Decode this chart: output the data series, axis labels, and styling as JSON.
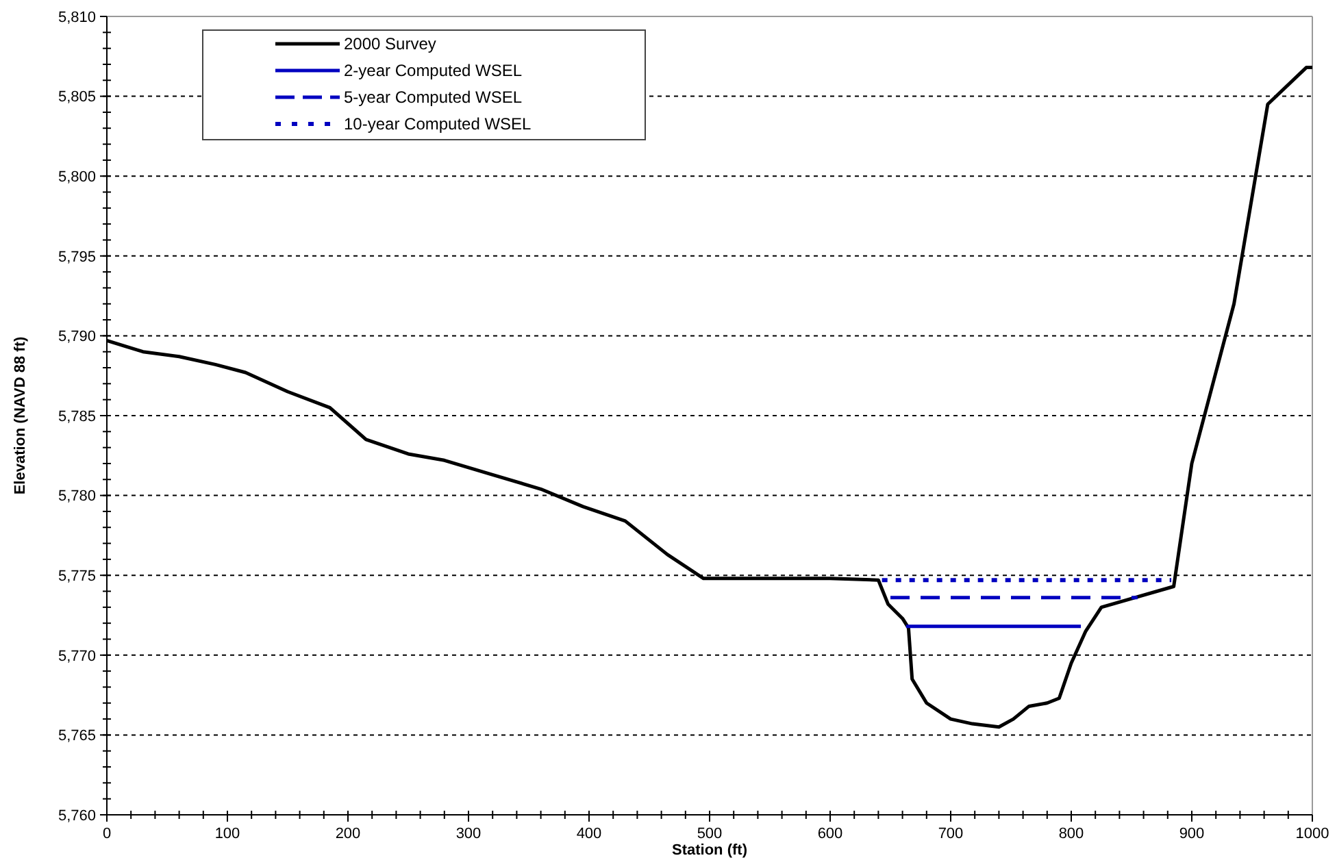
{
  "chart_data": {
    "type": "line",
    "xlabel": "Station (ft)",
    "ylabel": "Elevation (NAVD 88 ft)",
    "xlim": [
      0,
      1000
    ],
    "xticks": [
      0,
      100,
      200,
      300,
      400,
      500,
      600,
      700,
      800,
      900,
      1000
    ],
    "ylim": [
      5760,
      5810
    ],
    "yticks": [
      {
        "value": 5760,
        "label": "5,760"
      },
      {
        "value": 5765,
        "label": "5,765"
      },
      {
        "value": 5770,
        "label": "5,770"
      },
      {
        "value": 5775,
        "label": "5,775"
      },
      {
        "value": 5780,
        "label": "5,780"
      },
      {
        "value": 5785,
        "label": "5,785"
      },
      {
        "value": 5790,
        "label": "5,790"
      },
      {
        "value": 5795,
        "label": "5,795"
      },
      {
        "value": 5800,
        "label": "5,800"
      },
      {
        "value": 5805,
        "label": "5,805"
      },
      {
        "value": 5810,
        "label": "5,810"
      }
    ],
    "grid": "y",
    "legend": "top left",
    "series": [
      {
        "name": "2000 Survey",
        "color": "#000000",
        "line_style": "solid",
        "x": [
          0,
          30,
          60,
          90,
          115,
          150,
          185,
          215,
          250,
          280,
          320,
          360,
          395,
          430,
          465,
          495,
          600,
          640,
          648,
          660,
          665,
          668,
          680,
          700,
          718,
          740,
          752,
          765,
          780,
          790,
          800,
          812,
          825,
          885,
          900,
          935,
          963,
          995,
          1000
        ],
        "values": [
          5789.7,
          5789.0,
          5788.7,
          5788.2,
          5787.7,
          5786.5,
          5785.5,
          5783.5,
          5782.6,
          5782.2,
          5781.3,
          5780.4,
          5779.3,
          5778.4,
          5776.3,
          5774.8,
          5774.8,
          5774.7,
          5773.2,
          5772.3,
          5771.7,
          5768.5,
          5767.0,
          5766.0,
          5765.7,
          5765.5,
          5766.0,
          5766.8,
          5767.0,
          5767.3,
          5769.5,
          5771.5,
          5773.0,
          5774.3,
          5782.0,
          5792.0,
          5804.5,
          5806.8,
          5806.8
        ]
      },
      {
        "name": "2-year Computed WSEL",
        "color": "#0000c0",
        "line_style": "solid",
        "x": [
          663,
          808
        ],
        "values": [
          5771.8,
          5771.8
        ]
      },
      {
        "name": "5-year Computed WSEL",
        "color": "#0000c0",
        "line_style": "dashed",
        "x": [
          650,
          855
        ],
        "values": [
          5773.6,
          5773.6
        ]
      },
      {
        "name": "10-year Computed WSEL",
        "color": "#0000c0",
        "line_style": "dotted",
        "x": [
          643,
          883
        ],
        "values": [
          5774.7,
          5774.7
        ]
      }
    ]
  }
}
